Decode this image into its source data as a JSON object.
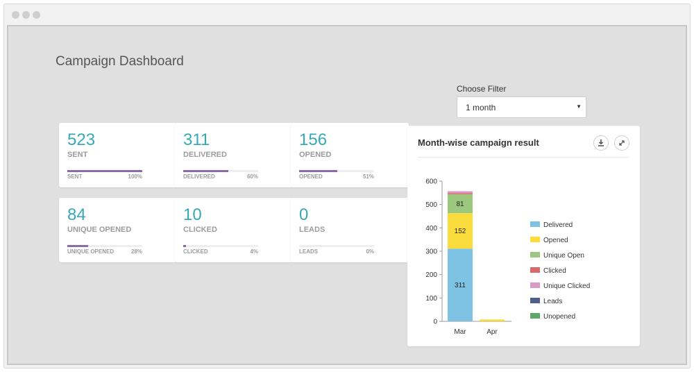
{
  "page_title": "Campaign Dashboard",
  "filter": {
    "label": "Choose Filter",
    "selected": "1 month",
    "caret": "▼"
  },
  "stats": [
    {
      "value": "523",
      "label": "SENT",
      "footer": "SENT",
      "percent_text": "100%",
      "progress": 1.0
    },
    {
      "value": "311",
      "label": "DELIVERED",
      "footer": "DELIVERED",
      "percent_text": "60%",
      "progress": 0.6
    },
    {
      "value": "156",
      "label": "OPENED",
      "footer": "OPENED",
      "percent_text": "51%",
      "progress": 0.51
    },
    {
      "value": "84",
      "label": "UNIQUE OPENED",
      "footer": "UNIQUE OPENED",
      "percent_text": "28%",
      "progress": 0.28
    },
    {
      "value": "10",
      "label": "CLICKED",
      "footer": "CLICKED",
      "percent_text": "4%",
      "progress": 0.04
    },
    {
      "value": "0",
      "label": "LEADS",
      "footer": "LEADS",
      "percent_text": "0%",
      "progress": 0.0
    }
  ],
  "chart_panel": {
    "title": "Month-wise campaign result",
    "download_icon": "download-icon",
    "expand_icon": "expand-icon"
  },
  "chart_data": {
    "type": "bar",
    "stacked": true,
    "categories": [
      "Mar",
      "Apr"
    ],
    "ylim": [
      0,
      600
    ],
    "yticks": [
      0,
      100,
      200,
      300,
      400,
      500,
      600
    ],
    "legend_position": "right",
    "series": [
      {
        "name": "Delivered",
        "color": "#7ec3e3",
        "values": [
          311,
          0
        ],
        "labels": [
          "311",
          ""
        ]
      },
      {
        "name": "Opened",
        "color": "#fadc3c",
        "values": [
          152,
          8
        ],
        "labels": [
          "152",
          ""
        ]
      },
      {
        "name": "Unique Open",
        "color": "#9bc87e",
        "values": [
          81,
          0
        ],
        "labels": [
          "81",
          ""
        ]
      },
      {
        "name": "Clicked",
        "color": "#d96868",
        "values": [
          5,
          0
        ],
        "labels": [
          "",
          ""
        ]
      },
      {
        "name": "Unique Clicked",
        "color": "#d99ac8",
        "values": [
          8,
          0
        ],
        "labels": [
          "",
          ""
        ]
      },
      {
        "name": "Leads",
        "color": "#4f5d8f",
        "values": [
          0,
          0
        ],
        "labels": [
          "",
          ""
        ]
      },
      {
        "name": "Unopened",
        "color": "#5fa86a",
        "values": [
          0,
          0
        ],
        "labels": [
          "",
          ""
        ]
      }
    ]
  }
}
